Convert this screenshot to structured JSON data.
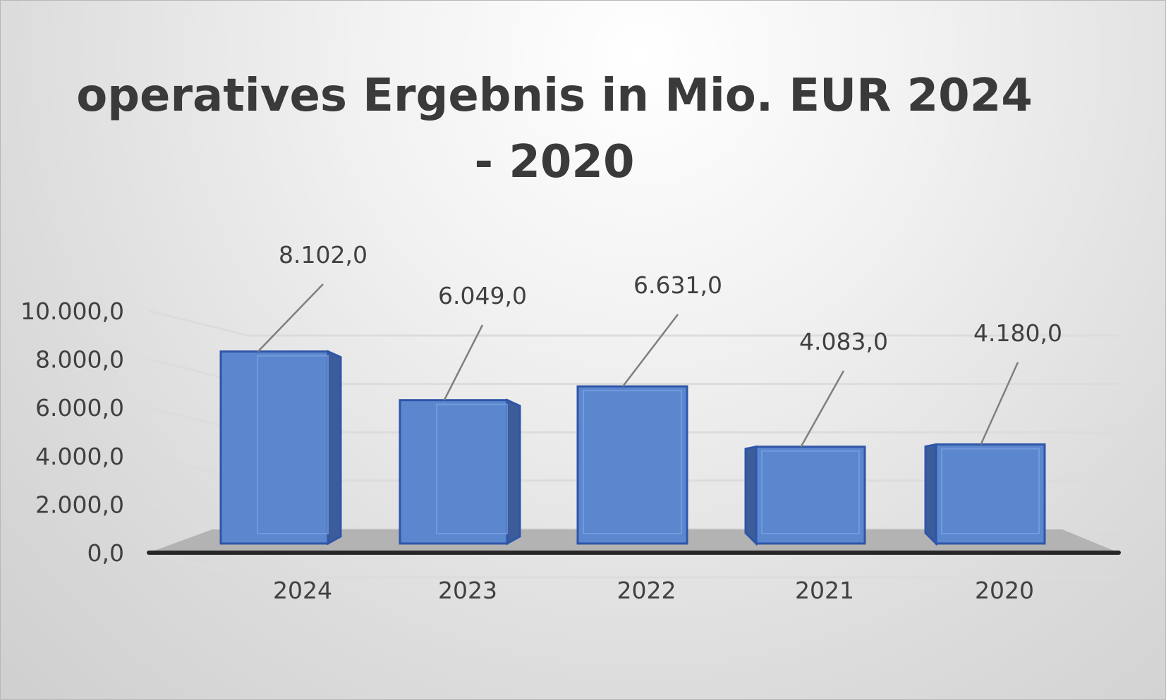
{
  "chart_data": {
    "type": "bar",
    "title": "operatives Ergebnis in Mio. EUR 2024 - 2020",
    "categories": [
      "2024",
      "2023",
      "2022",
      "2021",
      "2020"
    ],
    "values": [
      8102.0,
      6049.0,
      6631.0,
      4083.0,
      4180.0
    ],
    "data_labels": [
      "8.102,0",
      "6.049,0",
      "6.631,0",
      "4.083,0",
      "4.180,0"
    ],
    "y_ticks": [
      0,
      2000,
      4000,
      6000,
      8000,
      10000
    ],
    "y_tick_labels": [
      "0,0",
      "2.000,0",
      "4.000,0",
      "6.000,0",
      "8.000,0",
      "10.000,0"
    ],
    "ylim": [
      0,
      10000
    ],
    "xlabel": "",
    "ylabel": "",
    "grid": true,
    "legend": "none",
    "colors": {
      "bar_front": "#5b87cf",
      "bar_side": "#3c5d9a",
      "bar_edge": "#2f55a8",
      "floor": "#b3b3b3",
      "axis": "#262626",
      "gridline": "#dcdcdc",
      "leader": "#7f7f7f"
    }
  }
}
